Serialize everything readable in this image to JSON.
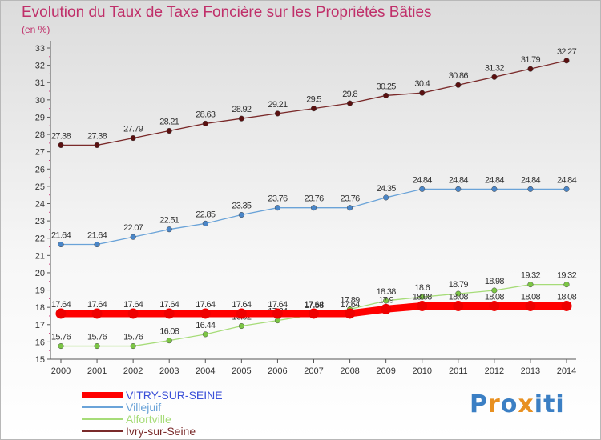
{
  "title": "Evolution du Taux de Taxe Foncière sur les Propriétés Bâties",
  "unit_label": "(en %)",
  "logo": {
    "letters": [
      "P",
      "r",
      "o",
      "x",
      "i",
      "t",
      "i"
    ],
    "colors": [
      "#3b7fc4",
      "#e89020",
      "#3b7fc4",
      "#e89020",
      "#3b7fc4",
      "#3b7fc4",
      "#3b7fc4"
    ]
  },
  "chart_data": {
    "type": "line",
    "x": [
      2000,
      2001,
      2002,
      2003,
      2004,
      2005,
      2006,
      2007,
      2008,
      2009,
      2010,
      2011,
      2012,
      2013,
      2014
    ],
    "ylim": [
      15,
      33
    ],
    "yticks": [
      15,
      16,
      17,
      18,
      19,
      20,
      21,
      22,
      23,
      24,
      25,
      26,
      27,
      28,
      29,
      30,
      31,
      32,
      33
    ],
    "grid": false,
    "legend_position": "bottom-left",
    "series": [
      {
        "name": "Ivry-sur-Seine",
        "color": "#7a2a2a",
        "marker": "#5a1010",
        "values": [
          27.38,
          27.38,
          27.79,
          28.21,
          28.63,
          28.92,
          29.21,
          29.5,
          29.8,
          30.25,
          30.4,
          30.86,
          31.32,
          31.79,
          32.27
        ],
        "labels": [
          "27.38",
          "27.38",
          "27.79",
          "28.21",
          "28.63",
          "28.92",
          "29.21",
          "29.5",
          "29.8",
          "30.25",
          "30.4",
          "30.86",
          "31.32",
          "31.79",
          "32.27"
        ]
      },
      {
        "name": "Villejuif",
        "color": "#6aa3d8",
        "marker": "#4a86c8",
        "values": [
          21.64,
          21.64,
          22.07,
          22.51,
          22.85,
          23.35,
          23.76,
          23.76,
          23.76,
          24.35,
          24.84,
          24.84,
          24.84,
          24.84,
          24.84
        ],
        "labels": [
          "21.64",
          "21.64",
          "22.07",
          "22.51",
          "22.85",
          "23.35",
          "23.76",
          "23.76",
          "23.76",
          "24.35",
          "24.84",
          "24.84",
          "24.84",
          "24.84",
          "24.84"
        ]
      },
      {
        "name": "Alfortville",
        "color": "#a6dc78",
        "marker": "#7cc645",
        "values": [
          15.76,
          15.76,
          15.76,
          16.08,
          16.44,
          16.92,
          17.24,
          17.58,
          17.89,
          18.38,
          18.6,
          18.79,
          18.98,
          19.32,
          19.32
        ],
        "labels": [
          "15.76",
          "15.76",
          "15.76",
          "16.08",
          "16.44",
          "16.92",
          "17.24",
          "17.58",
          "17.89",
          "18.38",
          "18.6",
          "18.79",
          "18.98",
          "19.32",
          "19.32"
        ]
      },
      {
        "name": "VITRY-SUR-SEINE",
        "color": "#ff0000",
        "marker": "#ee0000",
        "values": [
          17.64,
          17.64,
          17.64,
          17.64,
          17.64,
          17.64,
          17.64,
          17.64,
          17.64,
          17.9,
          18.08,
          18.08,
          18.08,
          18.08,
          18.08
        ],
        "labels": [
          "17.64",
          "17.64",
          "17.64",
          "17.64",
          "17.64",
          "17.64",
          "17.64",
          "17.64",
          "17.64",
          "17.9",
          "18.08",
          "18.08",
          "18.08",
          "18.08",
          "18.08"
        ]
      }
    ],
    "legend_order": [
      "VITRY-SUR-SEINE",
      "Villejuif",
      "Alfortville",
      "Ivry-sur-Seine"
    ]
  }
}
